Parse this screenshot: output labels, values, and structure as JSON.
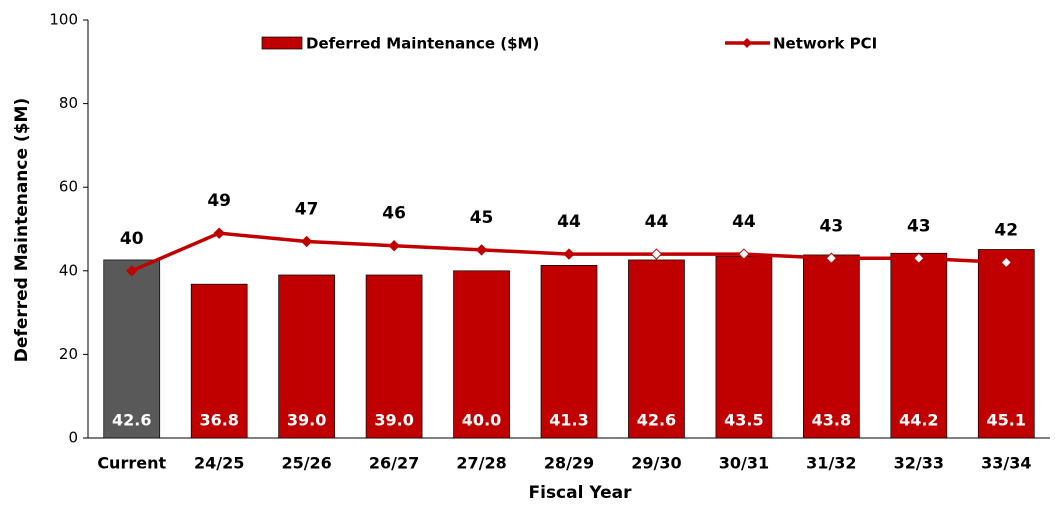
{
  "chart_data": {
    "type": "bar",
    "x_label": "Fiscal Year",
    "y_label": "Deferred Maintenance ($M)",
    "categories": [
      "Current",
      "24/25",
      "25/26",
      "26/27",
      "27/28",
      "28/29",
      "29/30",
      "30/31",
      "31/32",
      "32/33",
      "33/34"
    ],
    "series": [
      {
        "name": "Deferred Maintenance ($M)",
        "type": "bar",
        "color": "#c00000",
        "colors": [
          "#595959",
          "#c00000",
          "#c00000",
          "#c00000",
          "#c00000",
          "#c00000",
          "#c00000",
          "#c00000",
          "#c00000",
          "#c00000",
          "#c00000"
        ],
        "values": [
          42.6,
          36.8,
          39.0,
          39.0,
          40.0,
          41.3,
          42.6,
          43.5,
          43.8,
          44.2,
          45.1
        ],
        "value_labels": [
          "42.6",
          "36.8",
          "39.0",
          "39.0",
          "40.0",
          "41.3",
          "42.6",
          "43.5",
          "43.8",
          "44.2",
          "45.1"
        ]
      },
      {
        "name": "Network PCI",
        "type": "line",
        "color": "#c00000",
        "values": [
          40,
          49,
          47,
          46,
          45,
          44,
          44,
          44,
          43,
          43,
          42
        ]
      }
    ],
    "ylim": [
      0,
      100
    ],
    "yticks": [
      0,
      20,
      40,
      60,
      80,
      100
    ]
  }
}
